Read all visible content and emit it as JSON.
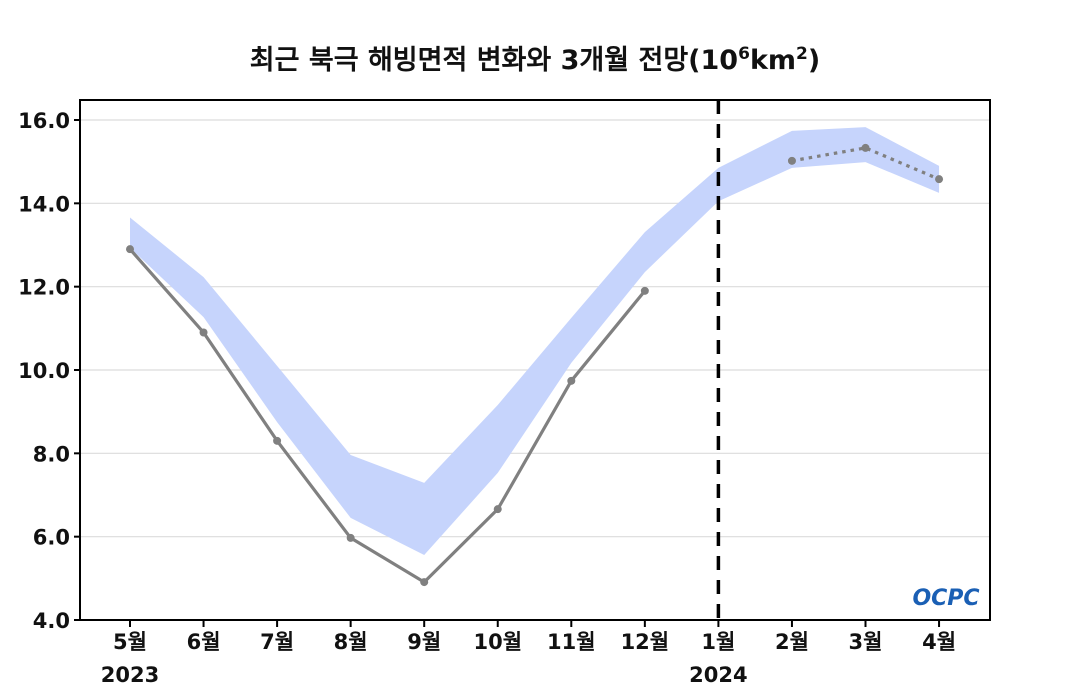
{
  "chart_data": {
    "type": "line",
    "title_main": "최근 북극 해빙면적 변화와 3개월 전망(10",
    "title_sup1": "6",
    "title_mid": "km",
    "title_sup2": "2",
    "title_end": ")",
    "categories": [
      "5월",
      "6월",
      "7월",
      "8월",
      "9월",
      "10월",
      "11월",
      "12월",
      "1월",
      "2월",
      "3월",
      "4월"
    ],
    "year_labels": [
      {
        "index": 0,
        "label": "2023"
      },
      {
        "index": 8,
        "label": "2024"
      }
    ],
    "yticks": [
      "4.0",
      "6.0",
      "8.0",
      "10.0",
      "12.0",
      "14.0",
      "16.0"
    ],
    "ylim": [
      4,
      16.5
    ],
    "grid": true,
    "divider_index": 8,
    "series": [
      {
        "kind": "observed",
        "style": "solid",
        "color": "#808080",
        "values": [
          12.9,
          10.9,
          8.3,
          5.97,
          4.91,
          6.66,
          9.74,
          11.9,
          null,
          null,
          null,
          null
        ]
      },
      {
        "kind": "forecast",
        "style": "dotted",
        "color": "#808080",
        "values": [
          null,
          null,
          null,
          null,
          null,
          null,
          null,
          null,
          null,
          15.02,
          15.33,
          14.58
        ]
      }
    ],
    "band": {
      "color": "#c6d4fc",
      "upper": [
        13.66,
        12.23,
        10.1,
        7.96,
        7.29,
        9.16,
        11.25,
        13.31,
        14.85,
        15.74,
        15.83,
        14.9
      ],
      "lower": [
        12.93,
        11.27,
        8.75,
        6.45,
        5.56,
        7.53,
        10.17,
        12.35,
        14.05,
        14.85,
        14.99,
        14.25
      ]
    },
    "logo": "OCPC"
  }
}
